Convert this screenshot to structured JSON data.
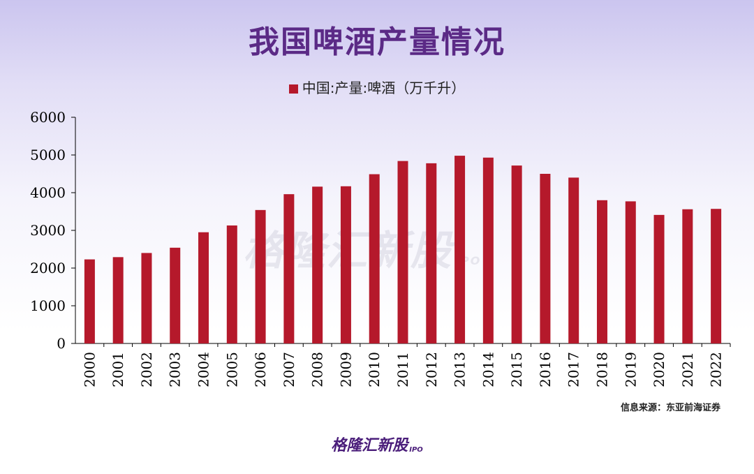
{
  "title": "我国啤酒产量情况",
  "legend_label": "中国:产量:啤酒（万千升）",
  "source": "信息来源：东亚前海证券",
  "watermark": "格隆汇新股",
  "brand": "格隆汇新股",
  "brand_suffix": "IPO",
  "colors": {
    "bar": "#b5192b",
    "title": "#5b2a86",
    "brand": "#4a1d7a"
  },
  "chart_data": {
    "type": "bar",
    "title": "我国啤酒产量情况",
    "categories": [
      "2000",
      "2001",
      "2002",
      "2003",
      "2004",
      "2005",
      "2006",
      "2007",
      "2008",
      "2009",
      "2010",
      "2011",
      "2012",
      "2013",
      "2014",
      "2015",
      "2016",
      "2017",
      "2018",
      "2019",
      "2020",
      "2021",
      "2022"
    ],
    "series": [
      {
        "name": "中国:产量:啤酒（万千升）",
        "values": [
          2230,
          2290,
          2400,
          2540,
          2950,
          3130,
          3540,
          3960,
          4160,
          4170,
          4490,
          4840,
          4780,
          4980,
          4930,
          4720,
          4500,
          4400,
          3800,
          3770,
          3410,
          3560,
          3570
        ]
      }
    ],
    "yticks": [
      0,
      1000,
      2000,
      3000,
      4000,
      5000,
      6000
    ],
    "ylim": [
      0,
      6000
    ],
    "xlabel": "",
    "ylabel": "",
    "grid": false,
    "legend_position": "top-center"
  }
}
